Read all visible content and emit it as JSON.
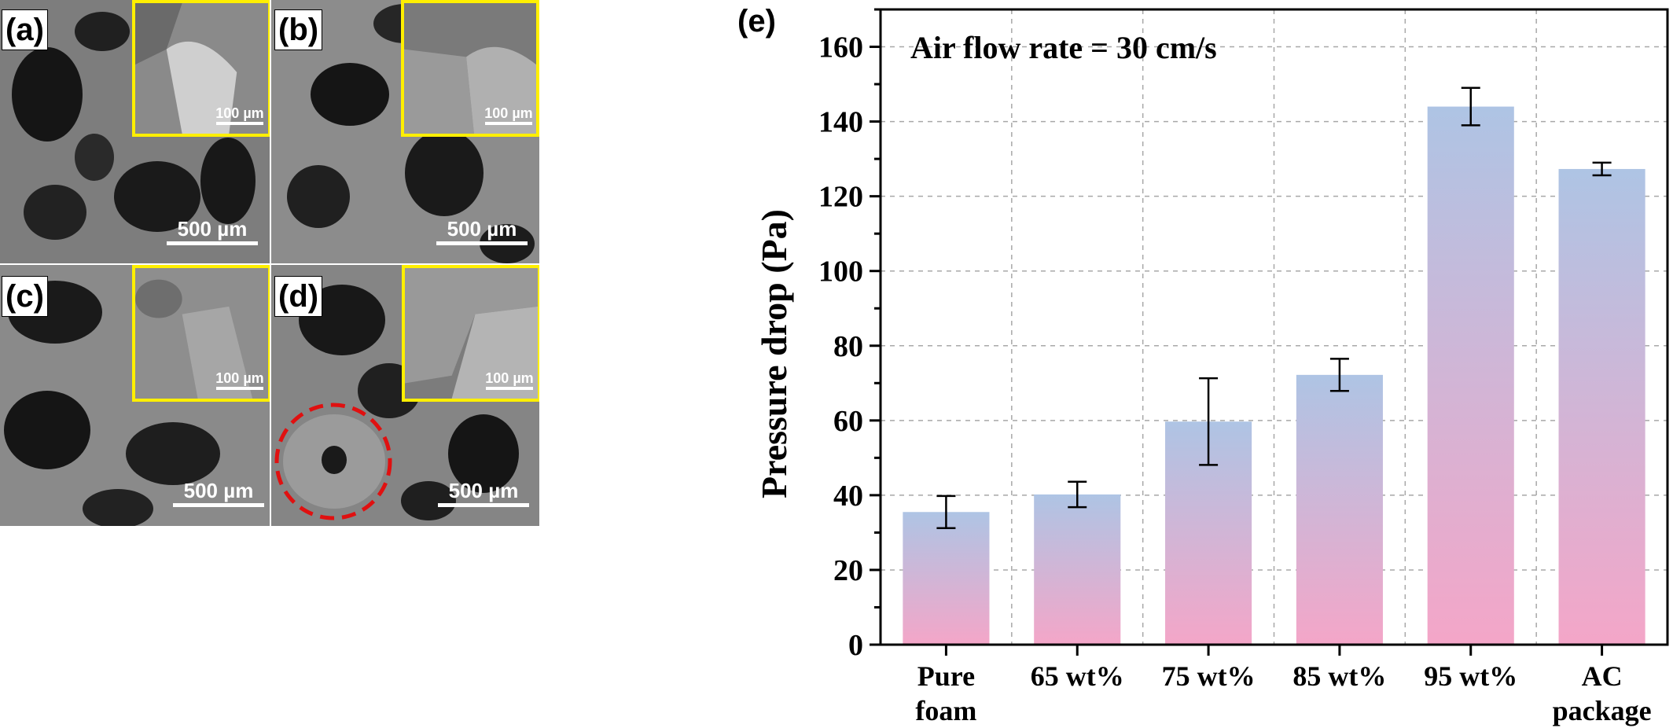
{
  "panels": [
    {
      "label": "(a)",
      "inset_scale": "100 µm",
      "main_scale": "500 µm"
    },
    {
      "label": "(b)",
      "inset_scale": "100 µm",
      "main_scale": "500 µm"
    },
    {
      "label": "(c)",
      "inset_scale": "100 µm",
      "main_scale": "500 µm"
    },
    {
      "label": "(d)",
      "inset_scale": "100 µm",
      "main_scale": "500 µm"
    }
  ],
  "colors": {
    "inset_border": "#ffef00",
    "highlight_circle": "#e01010",
    "bar_top": "#aec4e4",
    "bar_bottom": "#f4a6c8"
  },
  "chart_data": {
    "type": "bar",
    "panel_label": "(e)",
    "annotation": "Air flow rate = 30 cm/s",
    "ylabel": "Pressure drop (Pa)",
    "xlabel": "",
    "categories": [
      [
        "Pure",
        "foam"
      ],
      [
        "65 wt%"
      ],
      [
        "75 wt%"
      ],
      [
        "85 wt%"
      ],
      [
        "95 wt%"
      ],
      [
        "AC",
        "package"
      ]
    ],
    "values": [
      35.5,
      40.2,
      59.7,
      72.2,
      144.0,
      127.3
    ],
    "errors": [
      4.3,
      3.4,
      11.6,
      4.3,
      5.0,
      1.7
    ],
    "ylim": [
      0,
      170
    ],
    "yticks": [
      0,
      20,
      40,
      60,
      80,
      100,
      120,
      140,
      160
    ],
    "grid": true
  }
}
